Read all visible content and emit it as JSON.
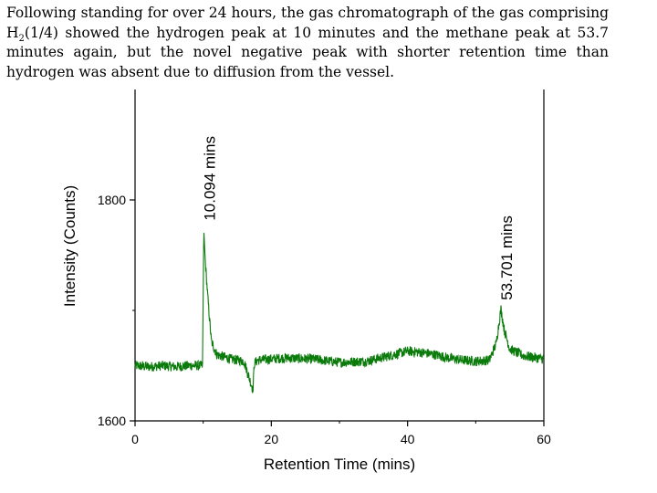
{
  "caption": {
    "line1_pre": "Following standing for over 24 hours, the gas chromatograph of the gas comprising",
    "h_symbol": "H",
    "h_sub": "2",
    "line2_rest": "(1/4) showed the hydrogen peak at 10 minutes and the methane peak at 53.7 minutes again, but the novel negative peak with shorter retention time than hydrogen was absent due to diffusion from the vessel."
  },
  "colors": {
    "trace": "#0a7a0a",
    "axis": "#000000"
  },
  "chart_data": {
    "type": "line",
    "title": "",
    "xlabel": "Retention Time (mins)",
    "ylabel": "Intensity (Counts)",
    "xlim": [
      0,
      60
    ],
    "ylim": [
      1600,
      1900
    ],
    "x_ticks": [
      "0",
      "20",
      "40",
      "60"
    ],
    "y_ticks": [
      "1600",
      "1800"
    ],
    "grid": false,
    "legend": "none",
    "series": [
      {
        "x": [
          0,
          2,
          4,
          6,
          8,
          9.9,
          10.094,
          10.3,
          10.7,
          11.2,
          12,
          14,
          16,
          17.3,
          17.5,
          18,
          22,
          26,
          30,
          34,
          38,
          40,
          42,
          44,
          46,
          48,
          50,
          52,
          53,
          53.701,
          54.2,
          55,
          57,
          60
        ],
        "y": [
          1650,
          1649,
          1650,
          1649,
          1650,
          1650,
          1773,
          1745,
          1710,
          1672,
          1660,
          1656,
          1654,
          1628,
          1652,
          1655,
          1657,
          1656,
          1653,
          1654,
          1660,
          1663,
          1662,
          1660,
          1657,
          1655,
          1654,
          1655,
          1670,
          1701,
          1682,
          1665,
          1659,
          1656
        ]
      }
    ],
    "annotations": [
      {
        "text": "10.094 mins",
        "x": 10.094,
        "y": 1773
      },
      {
        "text": "53.701 mins",
        "x": 53.701,
        "y": 1701
      }
    ]
  }
}
